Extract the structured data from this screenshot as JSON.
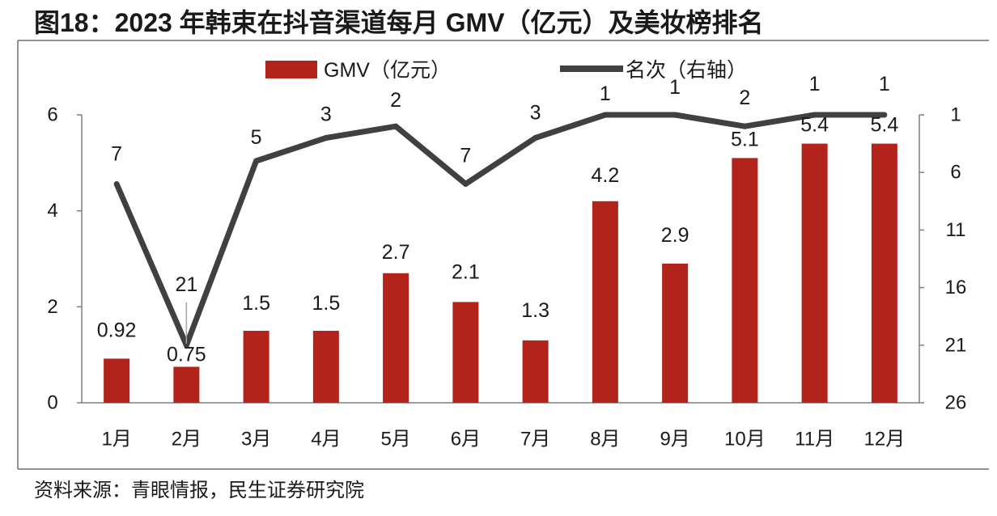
{
  "source": "资料来源：青眼情报，民生证券研究院",
  "colors": {
    "bar": "#B2241B",
    "line": "#404040",
    "axis": "#7F7F7F",
    "frame": "#6E6E6E",
    "leader": "#A6A6A6"
  },
  "chart_data": {
    "type": "bar",
    "title": "图18：2023 年韩束在抖音渠道每月 GMV（亿元）及美妆榜排名",
    "categories": [
      "1月",
      "2月",
      "3月",
      "4月",
      "5月",
      "6月",
      "7月",
      "8月",
      "9月",
      "10月",
      "11月",
      "12月"
    ],
    "series": [
      {
        "name": "GMV（亿元）",
        "type": "bar",
        "values": [
          0.92,
          0.75,
          1.5,
          1.5,
          2.7,
          2.1,
          1.3,
          4.2,
          2.9,
          5.1,
          5.4,
          5.4
        ]
      },
      {
        "name": "名次（右轴）",
        "type": "line",
        "values": [
          7,
          21,
          5,
          3,
          2,
          7,
          3,
          1,
          1,
          2,
          1,
          1
        ]
      }
    ],
    "y_left": {
      "min": 0,
      "max": 6,
      "ticks": [
        0,
        2,
        4,
        6
      ]
    },
    "y_right": {
      "min": 1,
      "max": 26,
      "ticks": [
        1,
        6,
        11,
        16,
        21,
        26
      ],
      "inverted": true
    },
    "grid": false,
    "legend_position": "top"
  }
}
